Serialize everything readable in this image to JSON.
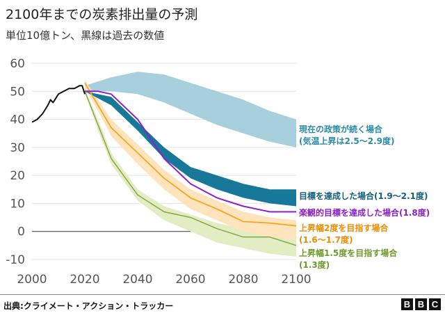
{
  "header": {
    "title": "2100年までの炭素排出量の予測",
    "subtitle": "単位10億トン、黒線は過去の数値"
  },
  "footer": {
    "source": "出典:クライメート・アクション・トラッカー",
    "logo": [
      "B",
      "B",
      "C"
    ]
  },
  "chart_data": {
    "type": "area",
    "title": "2100年までの炭素排出量の予測",
    "ylabel": "単位10億トン",
    "xlim": [
      2000,
      2100
    ],
    "ylim": [
      -10,
      60
    ],
    "xticks": [
      "2000",
      "2020",
      "2040",
      "2060",
      "2080",
      "2100"
    ],
    "yticks": [
      "60",
      "50",
      "40",
      "30",
      "20",
      "10",
      "0",
      "-10"
    ],
    "grid": true,
    "historical": {
      "color": "#111111",
      "x": [
        2000,
        2002,
        2004,
        2006,
        2007,
        2008,
        2010,
        2012,
        2014,
        2016,
        2018,
        2019,
        2020
      ],
      "y": [
        39,
        40,
        42,
        45,
        47,
        46,
        49,
        50,
        51,
        51,
        52,
        52,
        49
      ]
    },
    "series": [
      {
        "name": "現在の政策が続く場合",
        "name2": "(気温上昇は2.5〜2.9度)",
        "color": "#a7cfdc",
        "labelColor": "#2b8aa6",
        "x": [
          2020,
          2030,
          2040,
          2050,
          2060,
          2070,
          2080,
          2090,
          2100
        ],
        "low": [
          50,
          50,
          49,
          46,
          42,
          38,
          35,
          32,
          30
        ],
        "high": [
          52,
          55,
          57,
          56,
          53,
          50,
          47,
          43,
          40
        ]
      },
      {
        "name": "目標を達成した場合(1.9〜2.1度)",
        "color": "#17789a",
        "labelColor": "#145f7a",
        "x": [
          2020,
          2030,
          2040,
          2050,
          2060,
          2070,
          2080,
          2090,
          2100
        ],
        "low": [
          50,
          45,
          36,
          26,
          19,
          15,
          12,
          10,
          9
        ],
        "high": [
          50,
          48,
          39,
          30,
          23,
          20,
          17,
          15,
          15
        ]
      },
      {
        "name": "上昇幅2度を目指す場合",
        "name2": "(1.6〜1.7度)",
        "color": "#f5a623",
        "bandColor": "#fde4bd",
        "labelColor": "#f08c00",
        "x": [
          2020,
          2025,
          2030,
          2040,
          2050,
          2060,
          2070,
          2080,
          2090,
          2100
        ],
        "line": [
          53,
          45,
          37,
          28,
          19,
          12,
          8,
          3.5,
          3,
          2
        ],
        "low": [
          51,
          43,
          34,
          24,
          15,
          8,
          4,
          0,
          -2,
          -3
        ],
        "high": [
          54,
          47,
          40,
          31,
          22,
          15,
          11,
          7,
          5,
          4
        ]
      },
      {
        "name": "上昇幅1.5度を目指す場合",
        "name2": "(1.3度)",
        "color": "#86a646",
        "bandColor": "#e3edc4",
        "labelColor": "#6f9a2a",
        "x": [
          2020,
          2025,
          2030,
          2040,
          2050,
          2060,
          2070,
          2080,
          2090,
          2100
        ],
        "line": [
          50,
          38,
          26,
          13,
          7,
          5,
          1,
          -2,
          -2,
          -5
        ],
        "low": [
          50,
          36,
          24,
          11,
          4,
          0,
          -4,
          -6,
          -8,
          -9
        ],
        "high": [
          51,
          40,
          28,
          15,
          9,
          6,
          3,
          1,
          -1,
          -3
        ]
      },
      {
        "name": "楽観的目標を達成した場合(1.8度)",
        "color": "#8b1fcf",
        "labelColor": "#8b1fcf",
        "x": [
          2020,
          2025,
          2030,
          2040,
          2050,
          2060,
          2070,
          2080,
          2090,
          2100
        ],
        "line": [
          50,
          50,
          49,
          40,
          26,
          17,
          12,
          9,
          7,
          7
        ]
      }
    ]
  }
}
